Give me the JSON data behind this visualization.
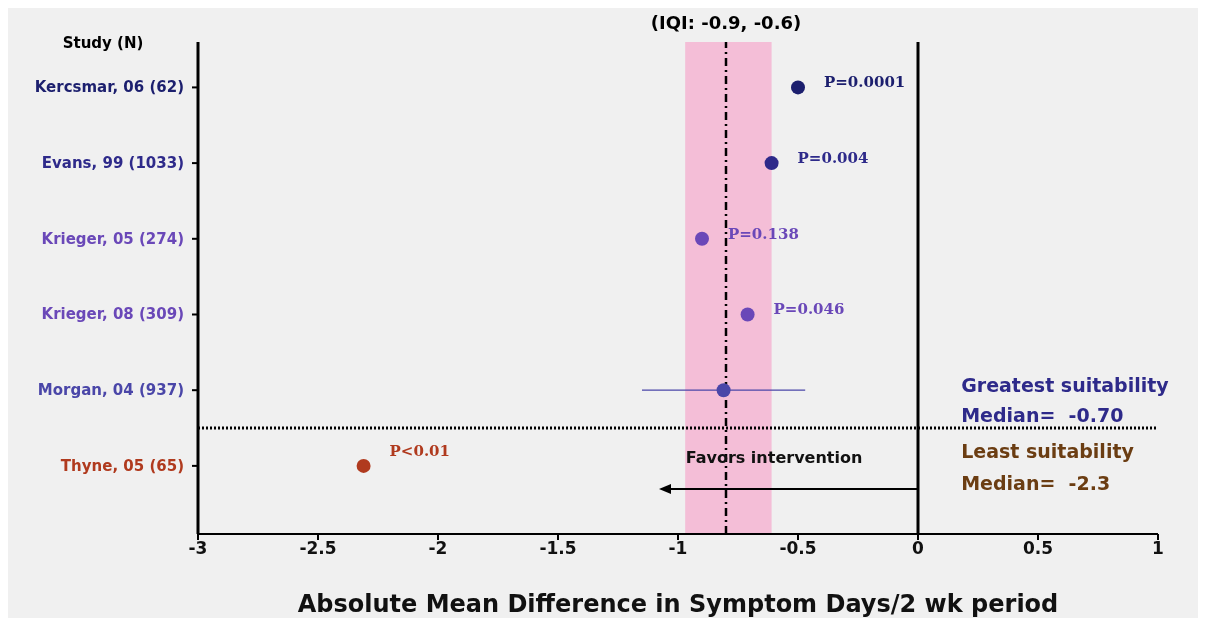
{
  "chart_data": {
    "type": "scatter",
    "title": "(IQI: -0.9, -0.6)",
    "ylabel": "Study (N)",
    "xlabel": "Absolute Mean Difference in Symptom Days/2 wk period",
    "categories": [
      "Kercsmar, 06 (62)",
      "Evans, 99 (1033)",
      "Krieger, 05 (274)",
      "Krieger, 08 (309)",
      "Morgan, 04 (937)",
      "Thyne, 05 (65)"
    ],
    "orientation": "horizontal",
    "values": [
      -0.5,
      -0.61,
      -0.9,
      -0.71,
      -0.81,
      -2.31
    ],
    "colors": [
      "#1c1f6e",
      "#2e2a8a",
      "#6a48b8",
      "#6a48b8",
      "#4a46a8",
      "#b03a1e"
    ],
    "errors": [
      null,
      null,
      null,
      null,
      [
        -1.15,
        -0.47
      ],
      null
    ],
    "xlim": [
      -3,
      1
    ],
    "xticks": [
      -3,
      -2.5,
      -2,
      -1.5,
      -1,
      -0.5,
      0,
      0.5,
      1
    ],
    "marker": "circle",
    "ref_lines": [
      {
        "axis": "x",
        "value": 0,
        "color": "#000000",
        "line_style": "solid"
      },
      {
        "axis": "x",
        "value": -0.8,
        "color": "#000000",
        "line_style": "dashed"
      }
    ],
    "bands": [
      {
        "axis": "x",
        "from": -0.97,
        "to": -0.61,
        "color": "#f4b8d4"
      }
    ],
    "annotations": [
      "Favors intervention",
      "Greatest suitability",
      "Median=  -0.70",
      "Least suitability",
      "Median=  -2.3",
      {
        "text": "P=0.0001",
        "x": -0.5,
        "y": "Kercsmar, 06 (62)"
      },
      {
        "text": "P=0.004",
        "x": -0.61,
        "y": "Evans, 99 (1033)"
      },
      {
        "text": "P=0.138",
        "x": -0.9,
        "y": "Krieger, 05 (274)"
      },
      {
        "text": "P=0.046",
        "x": -0.71,
        "y": "Krieger, 08 (309)"
      },
      {
        "text": "P<0.01",
        "x": -2.31,
        "y": "Thyne, 05 (65)"
      }
    ]
  }
}
